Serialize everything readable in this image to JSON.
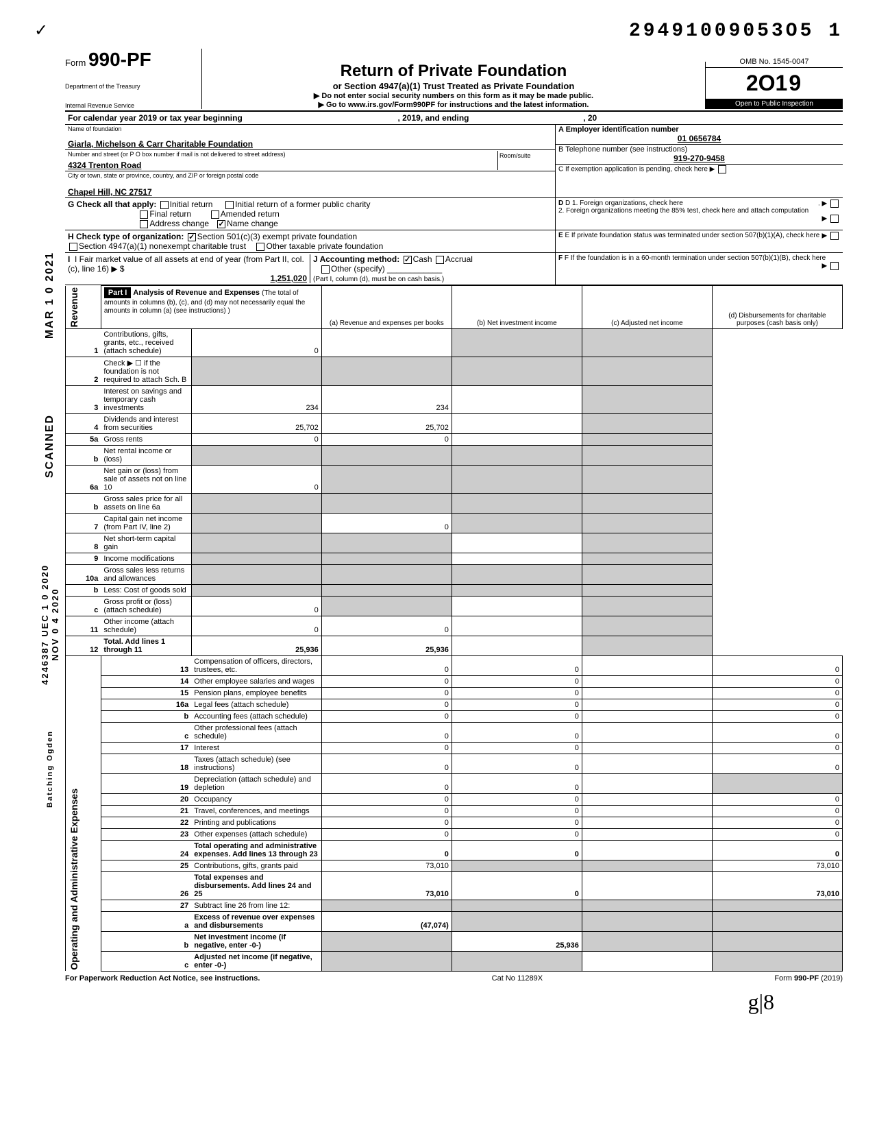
{
  "top": {
    "dln": "29491009053051",
    "dln_display": "29491009053O5 1"
  },
  "form": {
    "prefix": "Form",
    "number": "990-PF",
    "dept1": "Department of the Treasury",
    "dept2": "Internal Revenue Service",
    "title": "Return of Private Foundation",
    "sub1": "or Section 4947(a)(1) Trust Treated as Private Foundation",
    "sub2": "Do not enter social security numbers on this form as it may be made public.",
    "sub3": "Go to www.irs.gov/Form990PF for instructions and the latest information.",
    "omb": "OMB No. 1545-0047",
    "year_prefix": "2O",
    "year_suffix": "19",
    "open": "Open to Public Inspection"
  },
  "cal": {
    "line": "For calendar year 2019 or tax year beginning",
    "mid": ", 2019, and ending",
    "end": ", 20"
  },
  "entity": {
    "name_label": "Name of foundation",
    "name": "Giarla, Michelson & Carr Charitable Foundation",
    "addr_label": "Number and street (or P O box number if mail is not delivered to street address)",
    "room_label": "Room/suite",
    "addr": "4324 Trenton Road",
    "city_label": "City or town, state or province, country, and ZIP or foreign postal code",
    "city": "Chapel Hill, NC 27517",
    "ein_label": "A  Employer identification number",
    "ein": "01 0656784",
    "tel_label": "B  Telephone number (see instructions)",
    "tel": "919-270-9458",
    "c_label": "C  If exemption application is pending, check here ▶"
  },
  "checks": {
    "g_label": "G  Check all that apply:",
    "g_opts": [
      "Initial return",
      "Initial return of a former public charity",
      "Final return",
      "Amended return",
      "Address change",
      "Name change"
    ],
    "g_checked_index": 5,
    "h_label": "H  Check type of organization:",
    "h_opts": [
      "Section 501(c)(3) exempt private foundation",
      "Section 4947(a)(1) nonexempt charitable trust",
      "Other taxable private foundation"
    ],
    "h_checked_index": 0,
    "i_label": "I  Fair market value of all assets at end of year (from Part II, col. (c), line 16) ▶ $",
    "i_value": "1,251,020",
    "j_label": "J  Accounting method:",
    "j_opts": [
      "Cash",
      "Accrual",
      "Other (specify)"
    ],
    "j_checked_index": 0,
    "j_note": "(Part I, column (d), must be on cash basis.)",
    "d_label": "D  1. Foreign organizations, check here",
    "d2_label": "2. Foreign organizations meeting the 85% test, check here and attach computation",
    "e_label": "E  If private foundation status was terminated under section 507(b)(1)(A), check here",
    "f_label": "F  If the foundation is in a 60-month termination under section 507(b)(1)(B), check here"
  },
  "stamps": {
    "scanned": "SCANNED",
    "date1": "MAR 1 0 2021",
    "stamp2a": "4246387 UEC 1 0 2020",
    "stamp2b": "NOV 0 4 2020",
    "batch": "Batching Ogden"
  },
  "part1": {
    "hdr": "Part I",
    "title": "Analysis of Revenue and Expenses",
    "note": "(The total of amounts in columns (b), (c), and (d) may not necessarily equal the amounts in column (a) (see instructions) )",
    "cols": {
      "a": "(a) Revenue and expenses per books",
      "b": "(b) Net investment income",
      "c": "(c) Adjusted net income",
      "d": "(d) Disbursements for charitable purposes (cash basis only)"
    }
  },
  "sections": {
    "revenue": "Revenue",
    "opadmin": "Operating and Administrative Expenses"
  },
  "lines": [
    {
      "n": "1",
      "d": "Contributions, gifts, grants, etc., received (attach schedule)",
      "a": "0",
      "b": "",
      "c": "shade",
      "dcol": "shade"
    },
    {
      "n": "2",
      "d": "Check ▶ ☐ if the foundation is not required to attach Sch. B",
      "a": "shade",
      "b": "shade",
      "c": "shade",
      "dcol": "shade"
    },
    {
      "n": "3",
      "d": "Interest on savings and temporary cash investments",
      "a": "234",
      "b": "234",
      "c": "",
      "dcol": "shade"
    },
    {
      "n": "4",
      "d": "Dividends and interest from securities",
      "a": "25,702",
      "b": "25,702",
      "c": "",
      "dcol": "shade"
    },
    {
      "n": "5a",
      "d": "Gross rents",
      "a": "0",
      "b": "0",
      "c": "",
      "dcol": "shade"
    },
    {
      "n": "b",
      "d": "Net rental income or (loss)",
      "a": "shade",
      "b": "shade",
      "c": "shade",
      "dcol": "shade"
    },
    {
      "n": "6a",
      "d": "Net gain or (loss) from sale of assets not on line 10",
      "a": "0",
      "b": "shade",
      "c": "shade",
      "dcol": "shade"
    },
    {
      "n": "b",
      "d": "Gross sales price for all assets on line 6a",
      "a": "shade",
      "b": "shade",
      "c": "shade",
      "dcol": "shade"
    },
    {
      "n": "7",
      "d": "Capital gain net income (from Part IV, line 2)",
      "a": "shade",
      "b": "0",
      "c": "shade",
      "dcol": "shade"
    },
    {
      "n": "8",
      "d": "Net short-term capital gain",
      "a": "shade",
      "b": "shade",
      "c": "",
      "dcol": "shade"
    },
    {
      "n": "9",
      "d": "Income modifications",
      "a": "shade",
      "b": "shade",
      "c": "",
      "dcol": "shade"
    },
    {
      "n": "10a",
      "d": "Gross sales less returns and allowances",
      "a": "shade",
      "b": "shade",
      "c": "shade",
      "dcol": "shade"
    },
    {
      "n": "b",
      "d": "Less: Cost of goods sold",
      "a": "shade",
      "b": "shade",
      "c": "shade",
      "dcol": "shade"
    },
    {
      "n": "c",
      "d": "Gross profit or (loss) (attach schedule)",
      "a": "0",
      "b": "shade",
      "c": "",
      "dcol": "shade"
    },
    {
      "n": "11",
      "d": "Other income (attach schedule)",
      "a": "0",
      "b": "0",
      "c": "",
      "dcol": "shade"
    },
    {
      "n": "12",
      "d": "Total. Add lines 1 through 11",
      "a": "25,936",
      "b": "25,936",
      "c": "",
      "dcol": "shade",
      "bold": true
    },
    {
      "n": "13",
      "d": "Compensation of officers, directors, trustees, etc.",
      "a": "0",
      "b": "0",
      "c": "",
      "dcol": "0"
    },
    {
      "n": "14",
      "d": "Other employee salaries and wages",
      "a": "0",
      "b": "0",
      "c": "",
      "dcol": "0"
    },
    {
      "n": "15",
      "d": "Pension plans, employee benefits",
      "a": "0",
      "b": "0",
      "c": "",
      "dcol": "0"
    },
    {
      "n": "16a",
      "d": "Legal fees (attach schedule)",
      "a": "0",
      "b": "0",
      "c": "",
      "dcol": "0"
    },
    {
      "n": "b",
      "d": "Accounting fees (attach schedule)",
      "a": "0",
      "b": "0",
      "c": "",
      "dcol": "0"
    },
    {
      "n": "c",
      "d": "Other professional fees (attach schedule)",
      "a": "0",
      "b": "0",
      "c": "",
      "dcol": "0"
    },
    {
      "n": "17",
      "d": "Interest",
      "a": "0",
      "b": "0",
      "c": "",
      "dcol": "0"
    },
    {
      "n": "18",
      "d": "Taxes (attach schedule) (see instructions)",
      "a": "0",
      "b": "0",
      "c": "",
      "dcol": "0"
    },
    {
      "n": "19",
      "d": "Depreciation (attach schedule) and depletion",
      "a": "0",
      "b": "0",
      "c": "",
      "dcol": "shade"
    },
    {
      "n": "20",
      "d": "Occupancy",
      "a": "0",
      "b": "0",
      "c": "",
      "dcol": "0"
    },
    {
      "n": "21",
      "d": "Travel, conferences, and meetings",
      "a": "0",
      "b": "0",
      "c": "",
      "dcol": "0"
    },
    {
      "n": "22",
      "d": "Printing and publications",
      "a": "0",
      "b": "0",
      "c": "",
      "dcol": "0"
    },
    {
      "n": "23",
      "d": "Other expenses (attach schedule)",
      "a": "0",
      "b": "0",
      "c": "",
      "dcol": "0"
    },
    {
      "n": "24",
      "d": "Total operating and administrative expenses. Add lines 13 through 23",
      "a": "0",
      "b": "0",
      "c": "",
      "dcol": "0",
      "bold": true
    },
    {
      "n": "25",
      "d": "Contributions, gifts, grants paid",
      "a": "73,010",
      "b": "shade",
      "c": "shade",
      "dcol": "73,010"
    },
    {
      "n": "26",
      "d": "Total expenses and disbursements. Add lines 24 and 25",
      "a": "73,010",
      "b": "0",
      "c": "",
      "dcol": "73,010",
      "bold": true
    },
    {
      "n": "27",
      "d": "Subtract line 26 from line 12:",
      "a": "shade",
      "b": "shade",
      "c": "shade",
      "dcol": "shade"
    },
    {
      "n": "a",
      "d": "Excess of revenue over expenses and disbursements",
      "a": "(47,074)",
      "b": "shade",
      "c": "shade",
      "dcol": "shade",
      "bold": true
    },
    {
      "n": "b",
      "d": "Net investment income (if negative, enter -0-)",
      "a": "shade",
      "b": "25,936",
      "c": "shade",
      "dcol": "shade",
      "bold": true
    },
    {
      "n": "c",
      "d": "Adjusted net income (if negative, enter -0-)",
      "a": "shade",
      "b": "shade",
      "c": "",
      "dcol": "shade",
      "bold": true
    }
  ],
  "footer": {
    "left": "For Paperwork Reduction Act Notice, see instructions.",
    "mid": "Cat No 11289X",
    "right": "Form 990-PF (2019)"
  },
  "sig": "g|8",
  "colors": {
    "black": "#000000",
    "white": "#ffffff",
    "shade": "#cccccc"
  }
}
